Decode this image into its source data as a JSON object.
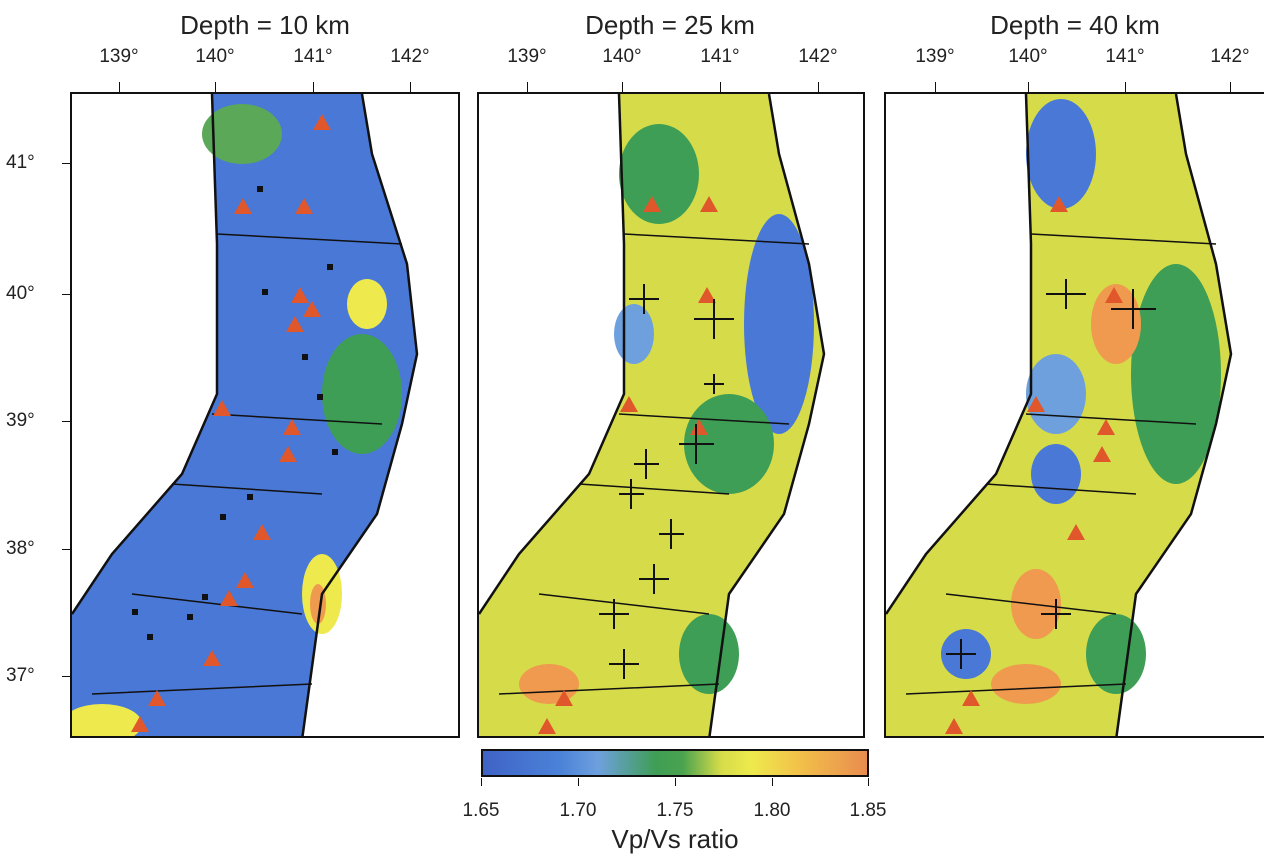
{
  "panels": [
    {
      "title": "Depth = 10 km",
      "lon_labels": [
        "139°",
        "140°",
        "141°",
        "142°"
      ]
    },
    {
      "title": "Depth = 25 km",
      "lon_labels": [
        "139°",
        "140°",
        "141°",
        "142°"
      ]
    },
    {
      "title": "Depth = 40 km",
      "lon_labels": [
        "139°",
        "140°",
        "141°",
        "142°"
      ]
    }
  ],
  "lat_labels": [
    "41°",
    "40°",
    "39°",
    "38°",
    "37°"
  ],
  "colorbar": {
    "title": "Vp/Vs ratio",
    "ticks": [
      "1.65",
      "1.70",
      "1.75",
      "1.80",
      "1.85"
    ],
    "range": [
      1.65,
      1.85
    ],
    "colors": [
      "#3f63c6",
      "#6ea0de",
      "#3f9e55",
      "#eeea4d",
      "#e98c4f"
    ]
  },
  "colors": {
    "volcano": "#e0572b",
    "low_vpvs": "#4a78d6",
    "mid_vpvs": "#3f9e55",
    "high_vpvs": "#eeea4d",
    "very_high_vpvs": "#ef9a4e"
  },
  "legend_symbols": {
    "volcano": "triangle-icon",
    "earthquake_10km": "square-icon",
    "earthquake_deep": "cross-icon"
  }
}
